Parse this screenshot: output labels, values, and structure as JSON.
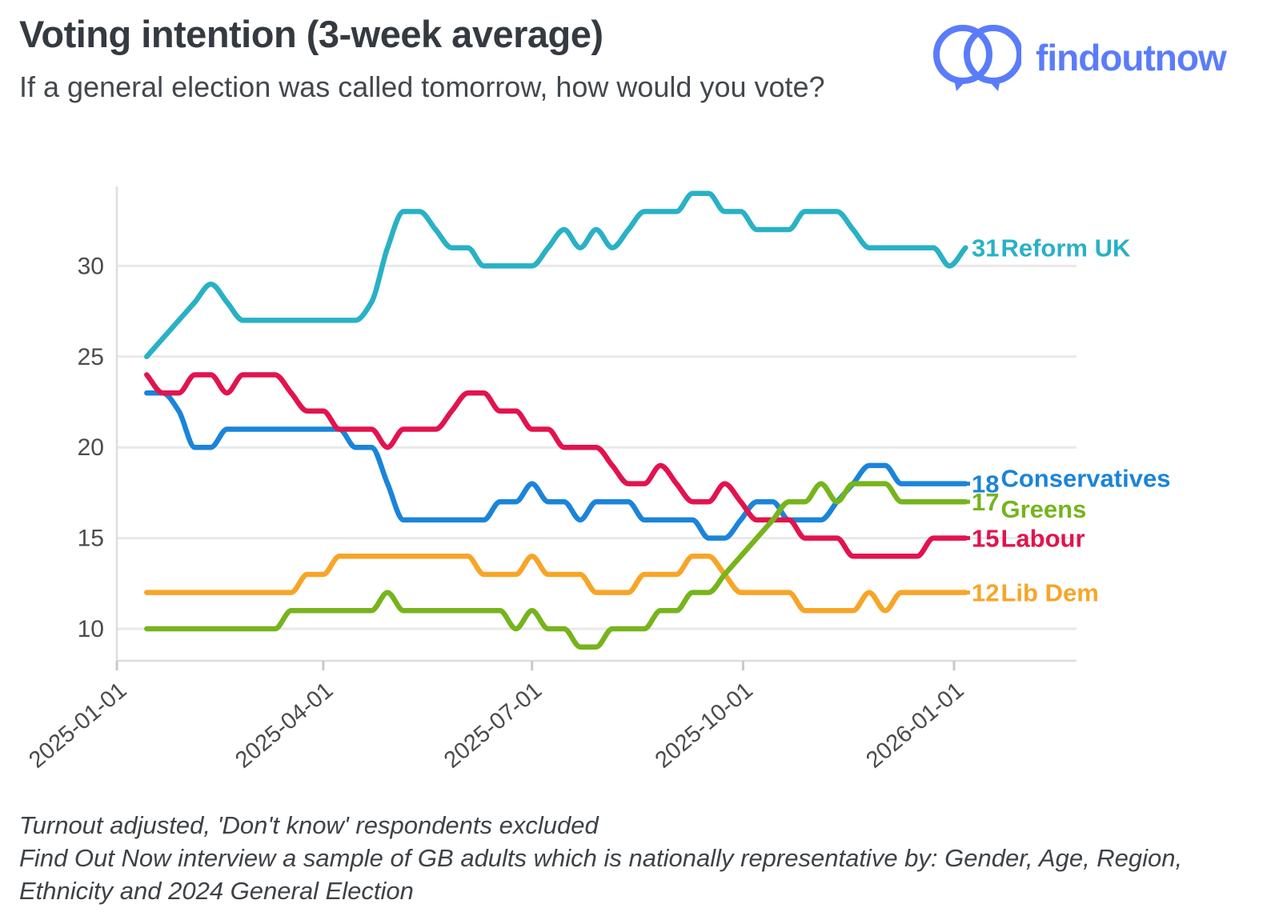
{
  "header": {
    "title": "Voting intention (3-week average)",
    "subtitle": "If a general election was called tomorrow, how would you vote?",
    "logo_text": "findoutnow"
  },
  "footer": {
    "line1": "Turnout adjusted, 'Don't know' respondents excluded",
    "line2": "Find Out Now interview a sample of GB adults which is nationally representative by: Gender, Age, Region, Ethnicity and 2024 General Election"
  },
  "colors": {
    "reform": "#29b1c5",
    "conservatives": "#1b84d9",
    "greens": "#76b41c",
    "labour": "#e2134e",
    "libdem": "#f7a528",
    "logo_blue": "#5b7cfa",
    "title_text": "#343a40",
    "body_text": "#43484d",
    "axis_text": "#4b4b4b",
    "gridline": "#e9e9e9",
    "axis_line": "#dedede",
    "tick_mark": "#c9c9c9"
  },
  "chart_data": {
    "type": "line",
    "title": "Voting intention (3-week average)",
    "xlabel": "",
    "ylabel": "",
    "grid": "horizontal",
    "legend_position": "right-end-labels",
    "ylim": [
      8.3,
      34.5
    ],
    "y_ticks": [
      10,
      15,
      20,
      25,
      30
    ],
    "x_axis": {
      "start_date": "2025-01-01",
      "end_date": "2026-01-01"
    },
    "x_ticks": [
      "2025-01-01",
      "2025-04-01",
      "2025-07-01",
      "2025-10-01",
      "2026-01-01"
    ],
    "x": [
      "2025-01-14",
      "2025-01-21",
      "2025-01-28",
      "2025-02-04",
      "2025-02-11",
      "2025-02-18",
      "2025-02-25",
      "2025-03-04",
      "2025-03-11",
      "2025-03-18",
      "2025-03-25",
      "2025-04-01",
      "2025-04-08",
      "2025-04-15",
      "2025-04-22",
      "2025-04-29",
      "2025-05-06",
      "2025-05-13",
      "2025-05-20",
      "2025-05-27",
      "2025-06-03",
      "2025-06-10",
      "2025-06-17",
      "2025-06-24",
      "2025-07-01",
      "2025-07-08",
      "2025-07-15",
      "2025-07-22",
      "2025-07-29",
      "2025-08-05",
      "2025-08-12",
      "2025-08-19",
      "2025-08-26",
      "2025-09-02",
      "2025-09-09",
      "2025-09-16",
      "2025-09-23",
      "2025-09-30",
      "2025-10-07",
      "2025-10-14",
      "2025-10-21",
      "2025-10-28",
      "2025-11-04",
      "2025-11-11",
      "2025-11-18",
      "2025-11-25",
      "2025-12-02",
      "2025-12-09",
      "2025-12-16",
      "2025-12-23",
      "2025-12-30",
      "2026-01-06"
    ],
    "series": [
      {
        "slug": "conservatives",
        "name": "Conservatives",
        "color": "#1b84d9",
        "end_label_value": 18,
        "leader_dash": true,
        "name_dy": -7,
        "values": [
          23,
          23,
          22,
          20,
          20,
          21,
          21,
          21,
          21,
          21,
          21,
          21,
          21,
          20,
          20,
          18,
          16,
          16,
          16,
          16,
          16,
          16,
          17,
          17,
          18,
          17,
          17,
          16,
          17,
          17,
          17,
          16,
          16,
          16,
          16,
          15,
          15,
          16,
          17,
          17,
          16,
          16,
          16,
          17,
          18,
          19,
          19,
          18,
          18,
          18,
          18,
          18
        ]
      },
      {
        "slug": "labour",
        "name": "Labour",
        "color": "#e2134e",
        "end_label_value": 15,
        "leader_dash": true,
        "name_dy": 0,
        "values": [
          24,
          23,
          23,
          24,
          24,
          23,
          24,
          24,
          24,
          23,
          22,
          22,
          21,
          21,
          21,
          20,
          21,
          21,
          21,
          22,
          23,
          23,
          22,
          22,
          21,
          21,
          20,
          20,
          20,
          19,
          18,
          18,
          19,
          18,
          17,
          17,
          18,
          17,
          16,
          16,
          16,
          15,
          15,
          15,
          14,
          14,
          14,
          14,
          14,
          15,
          15,
          15
        ]
      },
      {
        "slug": "lib-dem",
        "name": "Lib Dem",
        "color": "#f7a528",
        "end_label_value": 12,
        "leader_dash": true,
        "name_dy": 0,
        "values": [
          12,
          12,
          12,
          12,
          12,
          12,
          12,
          12,
          12,
          12,
          13,
          13,
          14,
          14,
          14,
          14,
          14,
          14,
          14,
          14,
          14,
          13,
          13,
          13,
          14,
          13,
          13,
          13,
          12,
          12,
          12,
          13,
          13,
          13,
          14,
          14,
          13,
          12,
          12,
          12,
          12,
          11,
          11,
          11,
          11,
          12,
          11,
          12,
          12,
          12,
          12,
          12
        ]
      },
      {
        "slug": "greens",
        "name": "Greens",
        "color": "#76b41c",
        "end_label_value": 17,
        "leader_dash": true,
        "name_dy": 9,
        "values": [
          10,
          10,
          10,
          10,
          10,
          10,
          10,
          10,
          10,
          11,
          11,
          11,
          11,
          11,
          11,
          12,
          11,
          11,
          11,
          11,
          11,
          11,
          11,
          10,
          11,
          10,
          10,
          9,
          9,
          10,
          10,
          10,
          11,
          11,
          12,
          12,
          13,
          14,
          15,
          16,
          17,
          17,
          18,
          17,
          18,
          18,
          18,
          17,
          17,
          17,
          17,
          17
        ]
      },
      {
        "slug": "reform-uk",
        "name": "Reform UK",
        "color": "#29b1c5",
        "end_label_value": 31,
        "leader_dash": false,
        "name_dy": 0,
        "values": [
          25,
          26,
          27,
          28,
          29,
          28,
          27,
          27,
          27,
          27,
          27,
          27,
          27,
          27,
          28,
          31,
          33,
          33,
          32,
          31,
          31,
          30,
          30,
          30,
          30,
          31,
          32,
          31,
          32,
          31,
          32,
          33,
          33,
          33,
          34,
          34,
          33,
          33,
          32,
          32,
          32,
          33,
          33,
          33,
          32,
          31,
          31,
          31,
          31,
          31,
          30,
          31
        ]
      }
    ]
  }
}
